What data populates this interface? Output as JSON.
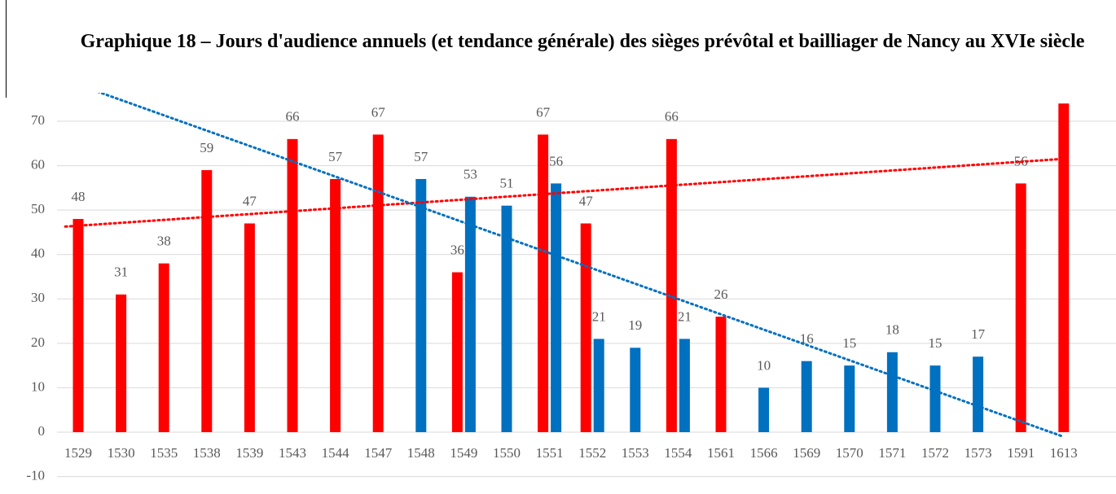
{
  "chart_data": {
    "type": "bar",
    "title": "Graphique  18 – Jours d'audience annuels (et tendance générale) des sièges prévôtal et bailliager de Nancy au XVIe siècle",
    "categories": [
      "1529",
      "1530",
      "1535",
      "1538",
      "1539",
      "1543",
      "1544",
      "1547",
      "1548",
      "1549",
      "1550",
      "1551",
      "1552",
      "1553",
      "1554",
      "1561",
      "1566",
      "1569",
      "1570",
      "1571",
      "1572",
      "1573",
      "1591",
      "1613"
    ],
    "series": [
      {
        "color": "#ff0000",
        "trendline": true,
        "values": [
          48,
          31,
          38,
          59,
          47,
          66,
          57,
          67,
          null,
          36,
          null,
          67,
          47,
          null,
          66,
          26,
          null,
          null,
          null,
          null,
          null,
          null,
          56,
          74
        ],
        "value_labels": [
          "48",
          "31",
          "38",
          "59",
          "47",
          "66",
          "57",
          "67",
          null,
          "36",
          null,
          "67",
          "47",
          null,
          "66",
          "26",
          null,
          null,
          null,
          null,
          null,
          null,
          "56",
          null
        ]
      },
      {
        "color": "#0070c0",
        "trendline": true,
        "values": [
          null,
          null,
          null,
          null,
          null,
          null,
          null,
          null,
          57,
          53,
          51,
          56,
          21,
          19,
          21,
          null,
          10,
          16,
          15,
          18,
          15,
          17,
          null,
          null
        ],
        "value_labels": [
          null,
          null,
          null,
          null,
          null,
          null,
          null,
          null,
          "57",
          "53",
          "51",
          "56",
          "21",
          "19",
          "21",
          null,
          "10",
          "16",
          "15",
          "18",
          "15",
          "17",
          null,
          null
        ]
      }
    ],
    "ylim": [
      -10,
      76
    ],
    "yticks": [
      -10,
      0,
      10,
      20,
      30,
      40,
      50,
      60,
      70
    ],
    "grid": true
  }
}
